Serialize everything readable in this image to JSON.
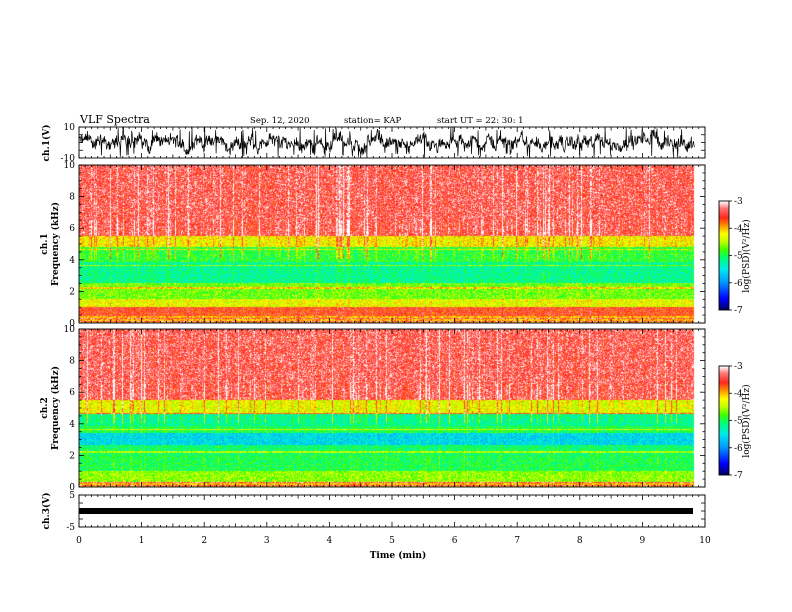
{
  "header": {
    "title": "VLF Spectra",
    "date": "Sep. 12, 2020",
    "station": "station= KAP",
    "start_ut": "start  UT =   22: 30: 1"
  },
  "colors": {
    "spectrum_ramp": [
      "#000066",
      "#0000ff",
      "#00c8ff",
      "#00ff80",
      "#40ff00",
      "#ffff00",
      "#ff8000",
      "#ff2020",
      "#ffffff"
    ]
  },
  "chart_data": [
    {
      "id": "ch1_waveform",
      "type": "line",
      "ylabel": "ch.1(V)",
      "yticks": [
        "10",
        "-10"
      ],
      "ylim": [
        -10,
        10
      ],
      "xlim": [
        0,
        10
      ],
      "data_end_min": 9.83,
      "description_level": "noisy waveform roughly between -8 and 8 V"
    },
    {
      "id": "ch1_spectrum",
      "type": "heatmap",
      "ylabel": "ch.1\nFrequency (kHz)",
      "ylabel_top": "ch.1",
      "ylabel_bottom": "Frequency (kHz)",
      "yticks": [
        "0",
        "2",
        "4",
        "6",
        "8",
        "10"
      ],
      "ylim": [
        0,
        10
      ],
      "xlim": [
        0,
        10
      ],
      "data_end_min": 9.83,
      "colorbar": {
        "label": "log(PSD)(V²/Hz)",
        "ticks": [
          "-3",
          "-4",
          "-5",
          "-6",
          "-7"
        ],
        "range": [
          -7,
          -3
        ]
      },
      "profile_khz": [
        [
          0.0,
          0.4,
          -4.0
        ],
        [
          0.4,
          1.0,
          -3.6
        ],
        [
          1.0,
          1.5,
          -4.3
        ],
        [
          1.5,
          2.5,
          -4.7
        ],
        [
          2.5,
          3.8,
          -5.2
        ],
        [
          3.8,
          4.8,
          -4.9
        ],
        [
          4.8,
          5.5,
          -4.2
        ],
        [
          5.5,
          10.0,
          -3.4
        ]
      ]
    },
    {
      "id": "ch2_spectrum",
      "type": "heatmap",
      "ylabel": "ch.2\nFrequency (kHz)",
      "ylabel_top": "ch.2",
      "ylabel_bottom": "Frequency (kHz)",
      "yticks": [
        "0",
        "2",
        "4",
        "6",
        "8",
        "10"
      ],
      "ylim": [
        0,
        10
      ],
      "xlim": [
        0,
        10
      ],
      "data_end_min": 9.83,
      "colorbar": {
        "label": "log(PSD)(V²/Hz)",
        "ticks": [
          "-3",
          "-4",
          "-5",
          "-6",
          "-7"
        ],
        "range": [
          -7,
          -3
        ]
      },
      "profile_khz": [
        [
          0.0,
          0.3,
          -4.0
        ],
        [
          0.3,
          1.0,
          -4.6
        ],
        [
          1.0,
          2.0,
          -5.0
        ],
        [
          2.0,
          2.6,
          -5.1
        ],
        [
          2.6,
          3.4,
          -5.6
        ],
        [
          3.4,
          3.8,
          -5.0
        ],
        [
          3.8,
          4.6,
          -5.2
        ],
        [
          4.6,
          5.5,
          -4.3
        ],
        [
          5.5,
          10.0,
          -3.4
        ]
      ]
    },
    {
      "id": "ch3_waveform",
      "type": "line",
      "ylabel": "ch.3(V)",
      "yticks": [
        "5",
        "-5"
      ],
      "ylim": [
        -5,
        5
      ],
      "xlim": [
        0,
        10
      ],
      "data_end_min": 9.83,
      "constant_value": 0
    }
  ],
  "xaxis": {
    "label": "Time (min)",
    "ticks": [
      "0",
      "1",
      "2",
      "3",
      "4",
      "5",
      "6",
      "7",
      "8",
      "9",
      "10"
    ]
  }
}
